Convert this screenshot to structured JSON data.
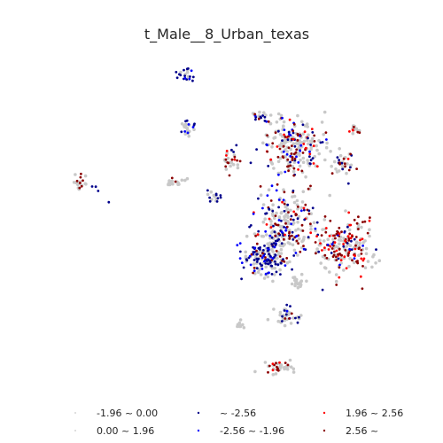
{
  "chart_data": {
    "type": "scatter",
    "title": "t_Male__8_Urban_texas",
    "grid": false,
    "axes_visible": false,
    "legend_location": "bottom",
    "series": [
      {
        "name": "-1.96 ~ 0.00",
        "color": "#c8c8c8",
        "size": "small"
      },
      {
        "name": "0.00 ~ 1.96",
        "color": "#c8c8c8",
        "size": "small"
      },
      {
        "name": "~ -2.56",
        "color": "#00008b",
        "size": "large"
      },
      {
        "name": "-2.56 ~ -1.96",
        "color": "#0000ff",
        "size": "large"
      },
      {
        "name": "1.96 ~ 2.56",
        "color": "#ff0000",
        "size": "large"
      },
      {
        "name": "2.56 ~",
        "color": "#8b0000",
        "size": "large"
      }
    ],
    "clusters": [
      {
        "cx": 210,
        "cy": 85,
        "spread": [
          10,
          8
        ],
        "n": 22,
        "mix": [
          0.2,
          0.2,
          0.35,
          0.1,
          0.0,
          0.15
        ]
      },
      {
        "cx": 212,
        "cy": 145,
        "spread": [
          8,
          8
        ],
        "n": 25,
        "mix": [
          0.3,
          0.3,
          0.3,
          0.1,
          0.0,
          0.0
        ]
      },
      {
        "cx": 293,
        "cy": 132,
        "spread": [
          10,
          6
        ],
        "n": 20,
        "mix": [
          0.3,
          0.3,
          0.2,
          0.1,
          0.05,
          0.05
        ]
      },
      {
        "cx": 333,
        "cy": 165,
        "spread": [
          25,
          25
        ],
        "n": 240,
        "mix": [
          0.3,
          0.3,
          0.1,
          0.08,
          0.07,
          0.15
        ]
      },
      {
        "cx": 400,
        "cy": 145,
        "spread": [
          6,
          5
        ],
        "n": 15,
        "mix": [
          0.3,
          0.2,
          0.0,
          0.0,
          0.2,
          0.3
        ]
      },
      {
        "cx": 385,
        "cy": 185,
        "spread": [
          12,
          12
        ],
        "n": 40,
        "mix": [
          0.3,
          0.3,
          0.15,
          0.05,
          0.05,
          0.15
        ]
      },
      {
        "cx": 262,
        "cy": 180,
        "spread": [
          8,
          12
        ],
        "n": 30,
        "mix": [
          0.3,
          0.3,
          0.1,
          0.0,
          0.05,
          0.25
        ]
      },
      {
        "cx": 90,
        "cy": 205,
        "spread": [
          8,
          8
        ],
        "n": 20,
        "mix": [
          0.4,
          0.3,
          0.0,
          0.0,
          0.0,
          0.3
        ]
      },
      {
        "cx": 198,
        "cy": 205,
        "spread": [
          8,
          5
        ],
        "n": 18,
        "mix": [
          0.4,
          0.4,
          0.0,
          0.0,
          0.0,
          0.2
        ]
      },
      {
        "cx": 240,
        "cy": 222,
        "spread": [
          8,
          7
        ],
        "n": 16,
        "mix": [
          0.4,
          0.4,
          0.2,
          0.0,
          0.0,
          0.0
        ]
      },
      {
        "cx": 320,
        "cy": 255,
        "spread": [
          25,
          35
        ],
        "n": 230,
        "mix": [
          0.25,
          0.25,
          0.2,
          0.1,
          0.05,
          0.15
        ]
      },
      {
        "cx": 298,
        "cy": 290,
        "spread": [
          20,
          20
        ],
        "n": 170,
        "mix": [
          0.2,
          0.2,
          0.4,
          0.15,
          0.0,
          0.05
        ]
      },
      {
        "cx": 387,
        "cy": 277,
        "spread": [
          30,
          25
        ],
        "n": 220,
        "mix": [
          0.25,
          0.25,
          0.05,
          0.05,
          0.15,
          0.25
        ]
      },
      {
        "cx": 335,
        "cy": 318,
        "spread": [
          8,
          6
        ],
        "n": 18,
        "mix": [
          0.5,
          0.5,
          0.0,
          0.0,
          0.0,
          0.0
        ]
      },
      {
        "cx": 325,
        "cy": 355,
        "spread": [
          12,
          8
        ],
        "n": 40,
        "mix": [
          0.25,
          0.25,
          0.3,
          0.15,
          0.0,
          0.05
        ]
      },
      {
        "cx": 272,
        "cy": 368,
        "spread": [
          4,
          8
        ],
        "n": 10,
        "mix": [
          0.5,
          0.3,
          0.0,
          0.0,
          0.0,
          0.2
        ]
      },
      {
        "cx": 315,
        "cy": 414,
        "spread": [
          15,
          7
        ],
        "n": 40,
        "mix": [
          0.35,
          0.35,
          0.0,
          0.0,
          0.05,
          0.25
        ]
      },
      {
        "cx": 110,
        "cy": 212,
        "spread": [
          14,
          12
        ],
        "n": 4,
        "mix": [
          0.0,
          0.0,
          1.0,
          0.0,
          0.0,
          0.0
        ]
      }
    ]
  }
}
